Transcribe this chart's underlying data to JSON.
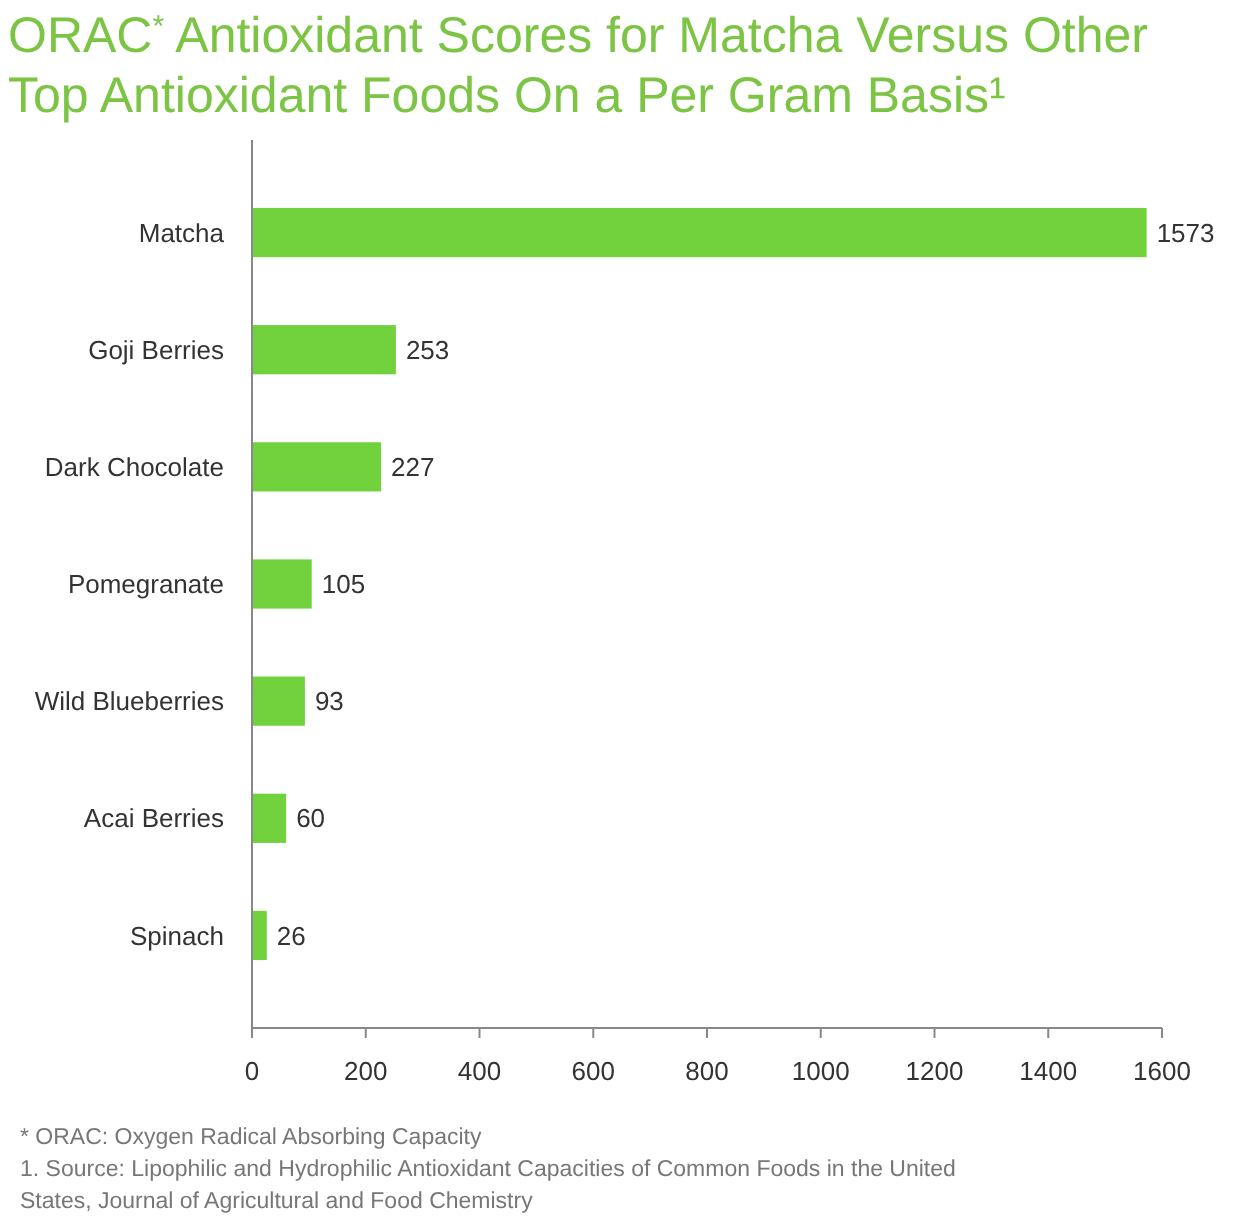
{
  "chart_data": {
    "type": "bar",
    "orientation": "horizontal",
    "title": "ORAC$^{*}$ Antioxidant Scores for Matcha Versus Other Top Antioxidant Foods On a Per Gram Basis¹",
    "categories": [
      "Matcha",
      "Goji Berries",
      "Dark Chocolate",
      "Pomegranate",
      "Wild Blueberries",
      "Acai Berries",
      "Spinach"
    ],
    "values": [
      1573,
      253,
      227,
      105,
      93,
      60,
      26
    ],
    "color": "#72d23e",
    "data_labels": true,
    "xlim": [
      0,
      1600
    ],
    "xticks": [
      0,
      200,
      400,
      600,
      800,
      1000,
      1200,
      1400,
      1600
    ],
    "annotations": [
      "* ORAC: Oxygen Radical Absorbing Capacity",
      "1. Source: Lipophilic and Hydrophilic Antioxidant Capacities of Common Foods in the United States, Journal of Agricultural and Food Chemistry"
    ]
  }
}
